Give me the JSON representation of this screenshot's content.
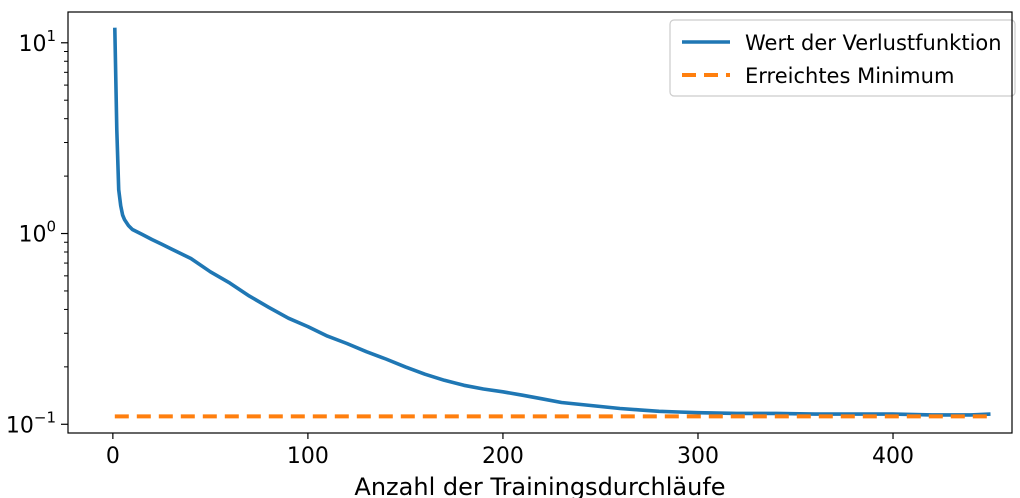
{
  "chart_data": {
    "type": "line",
    "xlabel": "Anzahl der Trainingsdurchläufe",
    "ylabel": "",
    "yscale": "log",
    "xlim": [
      -23,
      461
    ],
    "ylim": [
      0.09,
      14.5
    ],
    "grid": false,
    "legend_position": "top-right",
    "x_ticks": [
      0,
      100,
      200,
      300,
      400
    ],
    "x_tick_labels": [
      "0",
      "100",
      "200",
      "300",
      "400"
    ],
    "y_ticks": [
      0.1,
      1,
      10
    ],
    "y_tick_labels": [
      {
        "base": "10",
        "exp": "−1"
      },
      {
        "base": "10",
        "exp": "0"
      },
      {
        "base": "10",
        "exp": "1"
      }
    ],
    "series": [
      {
        "name": "Wert der Verlustfunktion",
        "color": "#1f77b4",
        "style": "solid",
        "x": [
          1,
          2,
          3,
          4,
          5,
          6,
          8,
          10,
          15,
          20,
          25,
          30,
          40,
          50,
          60,
          70,
          80,
          90,
          100,
          110,
          120,
          130,
          140,
          150,
          160,
          170,
          180,
          190,
          200,
          210,
          220,
          230,
          240,
          250,
          260,
          270,
          280,
          290,
          300,
          320,
          340,
          360,
          380,
          400,
          420,
          440,
          450
        ],
        "y": [
          12.0,
          3.5,
          1.7,
          1.4,
          1.25,
          1.18,
          1.1,
          1.05,
          0.99,
          0.93,
          0.88,
          0.83,
          0.74,
          0.63,
          0.55,
          0.47,
          0.41,
          0.36,
          0.325,
          0.29,
          0.265,
          0.24,
          0.22,
          0.2,
          0.183,
          0.17,
          0.16,
          0.153,
          0.148,
          0.142,
          0.136,
          0.13,
          0.127,
          0.124,
          0.121,
          0.119,
          0.117,
          0.116,
          0.115,
          0.114,
          0.114,
          0.113,
          0.113,
          0.113,
          0.112,
          0.112,
          0.113
        ]
      },
      {
        "name": "Erreichtes Minimum",
        "color": "#ff7f0e",
        "style": "dashed",
        "x": [
          1,
          450
        ],
        "y": [
          0.11,
          0.11
        ]
      }
    ]
  }
}
